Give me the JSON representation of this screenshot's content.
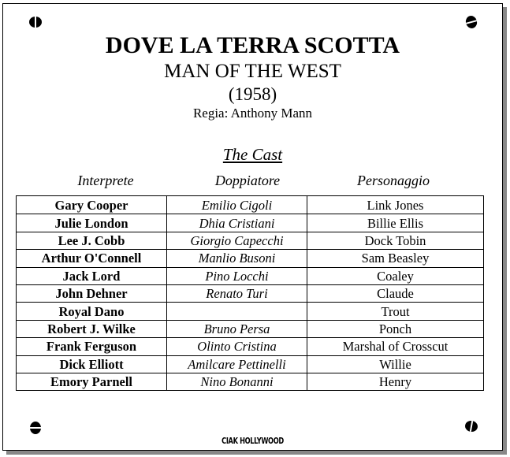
{
  "title": "DOVE LA TERRA SCOTTA",
  "original_title": "MAN OF THE WEST",
  "year": "(1958)",
  "director": "Regia: Anthony Mann",
  "cast_heading": "The Cast",
  "columns": [
    "Interprete",
    "Doppiatore",
    "Personaggio"
  ],
  "rows": [
    [
      "Gary Cooper",
      "Emilio Cigoli",
      "Link Jones"
    ],
    [
      "Julie London",
      "Dhia Cristiani",
      "Billie Ellis"
    ],
    [
      "Lee J. Cobb",
      "Giorgio Capecchi",
      "Dock Tobin"
    ],
    [
      "Arthur O'Connell",
      "Manlio Busoni",
      "Sam Beasley"
    ],
    [
      "Jack Lord",
      "Pino Locchi",
      "Coaley"
    ],
    [
      "John Dehner",
      "Renato Turi",
      "Claude"
    ],
    [
      "Royal Dano",
      "",
      "Trout"
    ],
    [
      "Robert J. Wilke",
      "Bruno Persa",
      "Ponch"
    ],
    [
      "Frank Ferguson",
      "Olinto Cristina",
      "Marshal of Crosscut"
    ],
    [
      "Dick Elliott",
      "Amilcare Pettinelli",
      "Willie"
    ],
    [
      "Emory Parnell",
      "Nino Bonanni",
      "Henry"
    ]
  ],
  "logo": "CIAK HOLLYWOOD"
}
